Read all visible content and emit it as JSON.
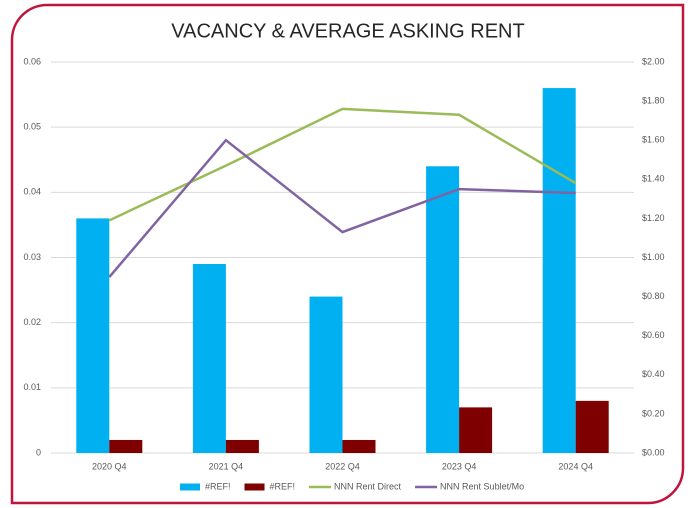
{
  "chart_data": {
    "type": "bar",
    "title": "VACANCY & AVERAGE ASKING RENT",
    "categories": [
      "2020 Q4",
      "2021 Q4",
      "2022 Q4",
      "2023 Q4",
      "2024 Q4"
    ],
    "series": [
      {
        "name": "#REF!",
        "color": "#00b0f0",
        "type": "bar",
        "values": [
          0.036,
          0.029,
          0.024,
          0.044,
          0.056
        ]
      },
      {
        "name": "#REF!",
        "color": "#7f0000",
        "type": "bar",
        "values": [
          0.002,
          0.002,
          0.002,
          0.007,
          0.008
        ]
      },
      {
        "name": "NNN Rent Direct",
        "color": "#9bbb59",
        "type": "line",
        "axis": "y2",
        "values": [
          1.19,
          1.47,
          1.76,
          1.73,
          1.38
        ]
      },
      {
        "name": "NNN Rent Sublet/Mo",
        "color": "#8064a2",
        "type": "line",
        "axis": "y2",
        "values": [
          0.9,
          1.6,
          1.13,
          1.35,
          1.33
        ]
      }
    ],
    "ylim": [
      0,
      0.06
    ],
    "yticks": [
      0,
      0.01,
      0.02,
      0.03,
      0.04,
      0.05,
      0.06
    ],
    "y2lim": [
      0,
      2
    ],
    "y2ticks": [
      {
        "value": 0,
        "label": "$0.00"
      },
      {
        "value": 0.2,
        "label": "$0.20"
      },
      {
        "value": 0.4,
        "label": "$0.40"
      },
      {
        "value": 0.6,
        "label": "$0.60"
      },
      {
        "value": 0.8,
        "label": "$0.80"
      },
      {
        "value": 1,
        "label": "$1.00"
      },
      {
        "value": 1.2,
        "label": "$1.20"
      },
      {
        "value": 1.4,
        "label": "$1.40"
      },
      {
        "value": 1.6,
        "label": "$1.60"
      },
      {
        "value": 1.8,
        "label": "$1.80"
      },
      {
        "value": 2,
        "label": "$2.00"
      }
    ],
    "grid": true,
    "legend": "bottom"
  }
}
